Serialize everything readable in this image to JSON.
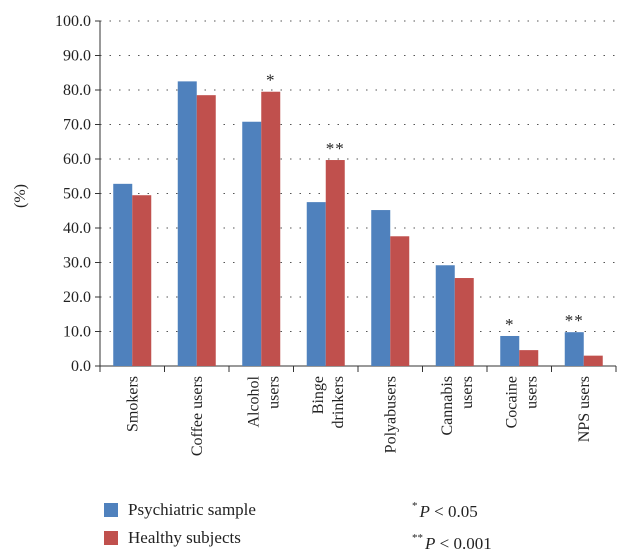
{
  "chart_data": {
    "type": "bar",
    "ylabel": "(%)",
    "ylim": [
      0,
      100
    ],
    "yticks": [
      "0.0",
      "10.0",
      "20.0",
      "30.0",
      "40.0",
      "50.0",
      "60.0",
      "70.0",
      "80.0",
      "90.0",
      "100.0"
    ],
    "grid": true,
    "categories": [
      [
        "Smokers"
      ],
      [
        "Coffee users"
      ],
      [
        "Alcohol",
        "users"
      ],
      [
        "Binge",
        "drinkers"
      ],
      [
        "Polyabusers"
      ],
      [
        "Cannabis",
        "users"
      ],
      [
        "Cocaine",
        "users"
      ],
      [
        "NPS users"
      ]
    ],
    "series": [
      {
        "name": "Psychiatric sample",
        "color": "#4F81BD",
        "values": [
          52.8,
          82.5,
          70.8,
          47.5,
          45.2,
          29.2,
          8.7,
          9.8
        ]
      },
      {
        "name": "Healthy subjects",
        "color": "#C0504D",
        "values": [
          49.5,
          78.5,
          79.5,
          59.7,
          37.6,
          25.5,
          4.6,
          3.0
        ]
      }
    ],
    "annotations": [
      {
        "category_index": 2,
        "series_index": 1,
        "text": "*"
      },
      {
        "category_index": 3,
        "series_index": 1,
        "text": "**"
      },
      {
        "category_index": 6,
        "series_index": 0,
        "text": "*"
      },
      {
        "category_index": 7,
        "series_index": 0,
        "text": "**"
      }
    ],
    "legend_placement": "bottom-left"
  },
  "notes": [
    {
      "marker": "*",
      "symbol": "P",
      "text": "< 0.05"
    },
    {
      "marker": "**",
      "symbol": "P",
      "text": "< 0.001"
    }
  ]
}
